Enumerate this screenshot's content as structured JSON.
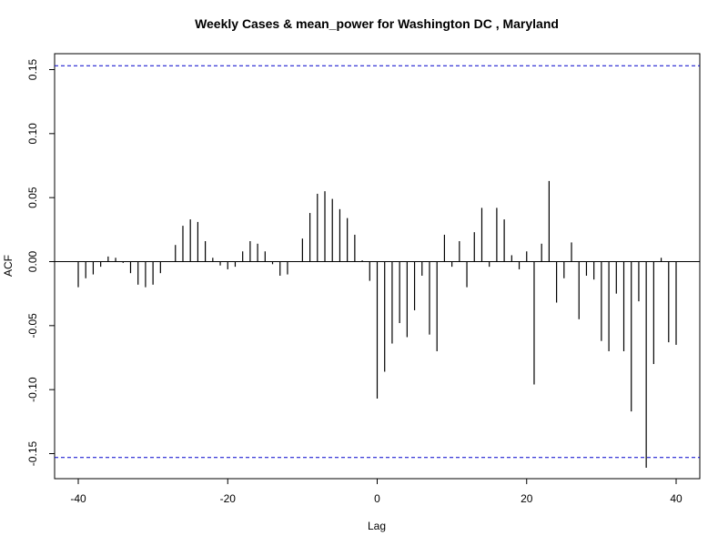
{
  "chart_data": {
    "type": "bar",
    "title": "Weekly Cases & mean_power for Washington DC , Maryland",
    "xlabel": "Lag",
    "ylabel": "ACF",
    "xlim": [
      -40,
      40
    ],
    "ylim": [
      -0.16,
      0.16
    ],
    "x_ticks": [
      -40,
      -20,
      0,
      20,
      40
    ],
    "y_ticks": [
      -0.15,
      -0.1,
      -0.05,
      0.0,
      0.05,
      0.1,
      0.15
    ],
    "y_tick_labels": [
      "-0.15",
      "-0.10",
      "-0.05",
      "0.00",
      "0.05",
      "0.10",
      "0.15"
    ],
    "x_tick_labels": [
      "-40",
      "-20",
      "0",
      "20",
      "40"
    ],
    "confidence_bounds": [
      0.153,
      -0.153
    ],
    "bound_color": "#0000cc",
    "line_color": "#000000",
    "lags": [
      -40,
      -39,
      -38,
      -37,
      -36,
      -35,
      -34,
      -33,
      -32,
      -31,
      -30,
      -29,
      -28,
      -27,
      -26,
      -25,
      -24,
      -23,
      -22,
      -21,
      -20,
      -19,
      -18,
      -17,
      -16,
      -15,
      -14,
      -13,
      -12,
      -11,
      -10,
      -9,
      -8,
      -7,
      -6,
      -5,
      -4,
      -3,
      -2,
      -1,
      0,
      1,
      2,
      3,
      4,
      5,
      6,
      7,
      8,
      9,
      10,
      11,
      12,
      13,
      14,
      15,
      16,
      17,
      18,
      19,
      20,
      21,
      22,
      23,
      24,
      25,
      26,
      27,
      28,
      29,
      30,
      31,
      32,
      33,
      34,
      35,
      36,
      37,
      38,
      39,
      40
    ],
    "acf": [
      -0.02,
      -0.013,
      -0.01,
      -0.004,
      0.004,
      0.003,
      -0.001,
      -0.009,
      -0.018,
      -0.02,
      -0.018,
      -0.009,
      0.0,
      0.013,
      0.028,
      0.033,
      0.031,
      0.016,
      0.003,
      -0.003,
      -0.006,
      -0.004,
      0.008,
      0.016,
      0.014,
      0.008,
      -0.002,
      -0.011,
      -0.01,
      0.0,
      0.018,
      0.038,
      0.053,
      0.055,
      0.049,
      0.041,
      0.034,
      0.021,
      0.001,
      -0.015,
      -0.107,
      -0.086,
      -0.064,
      -0.048,
      -0.059,
      -0.038,
      -0.011,
      -0.057,
      -0.07,
      0.021,
      -0.004,
      0.016,
      -0.02,
      0.023,
      0.042,
      -0.004,
      0.042,
      0.033,
      0.005,
      -0.006,
      0.008,
      -0.096,
      0.014,
      0.063,
      -0.032,
      -0.013,
      0.015,
      -0.045,
      -0.011,
      -0.014,
      -0.062,
      -0.07,
      -0.025,
      -0.07,
      -0.117,
      -0.031,
      -0.161,
      -0.08,
      0.003,
      -0.063,
      -0.065
    ]
  }
}
